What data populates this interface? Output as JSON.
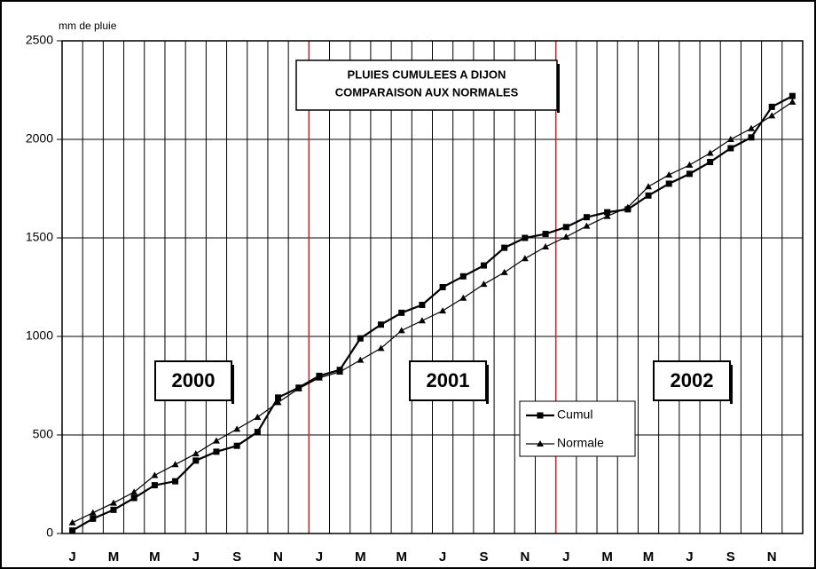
{
  "chart_data": {
    "type": "line",
    "title": [
      "PLUIES CUMULEES A DIJON",
      "COMPARAISON AUX NORMALES"
    ],
    "y_label": "mm de pluie",
    "annotations": [
      "2000",
      "2001",
      "2002"
    ],
    "categories": [
      "J",
      null,
      "M",
      null,
      "M",
      null,
      "J",
      null,
      "S",
      null,
      "N",
      null,
      "J",
      null,
      "M",
      null,
      "M",
      null,
      "J",
      null,
      "S",
      null,
      "N",
      null,
      "J",
      null,
      "M",
      null,
      "M",
      null,
      "J",
      null,
      "S",
      null,
      "N",
      null
    ],
    "series": [
      {
        "name": "Cumul",
        "color": "#000000",
        "marker": "square",
        "values": [
          15,
          75,
          120,
          180,
          245,
          265,
          370,
          415,
          445,
          515,
          690,
          740,
          800,
          830,
          990,
          1060,
          1120,
          1160,
          1250,
          1305,
          1360,
          1450,
          1500,
          1520,
          1555,
          1605,
          1630,
          1645,
          1715,
          1775,
          1825,
          1885,
          1955,
          2010,
          2165,
          2220
        ]
      },
      {
        "name": "Normale",
        "color": "#000000",
        "marker": "triangle",
        "values": [
          55,
          105,
          155,
          210,
          295,
          350,
          405,
          470,
          530,
          590,
          665,
          735,
          790,
          820,
          880,
          940,
          1030,
          1080,
          1130,
          1195,
          1265,
          1325,
          1395,
          1455,
          1505,
          1560,
          1610,
          1655,
          1760,
          1820,
          1870,
          1930,
          2000,
          2055,
          2120,
          2190
        ]
      }
    ],
    "ylim": [
      0,
      2500
    ],
    "yticks": [
      0,
      500,
      1000,
      1500,
      2000,
      2500
    ],
    "grid": true
  }
}
